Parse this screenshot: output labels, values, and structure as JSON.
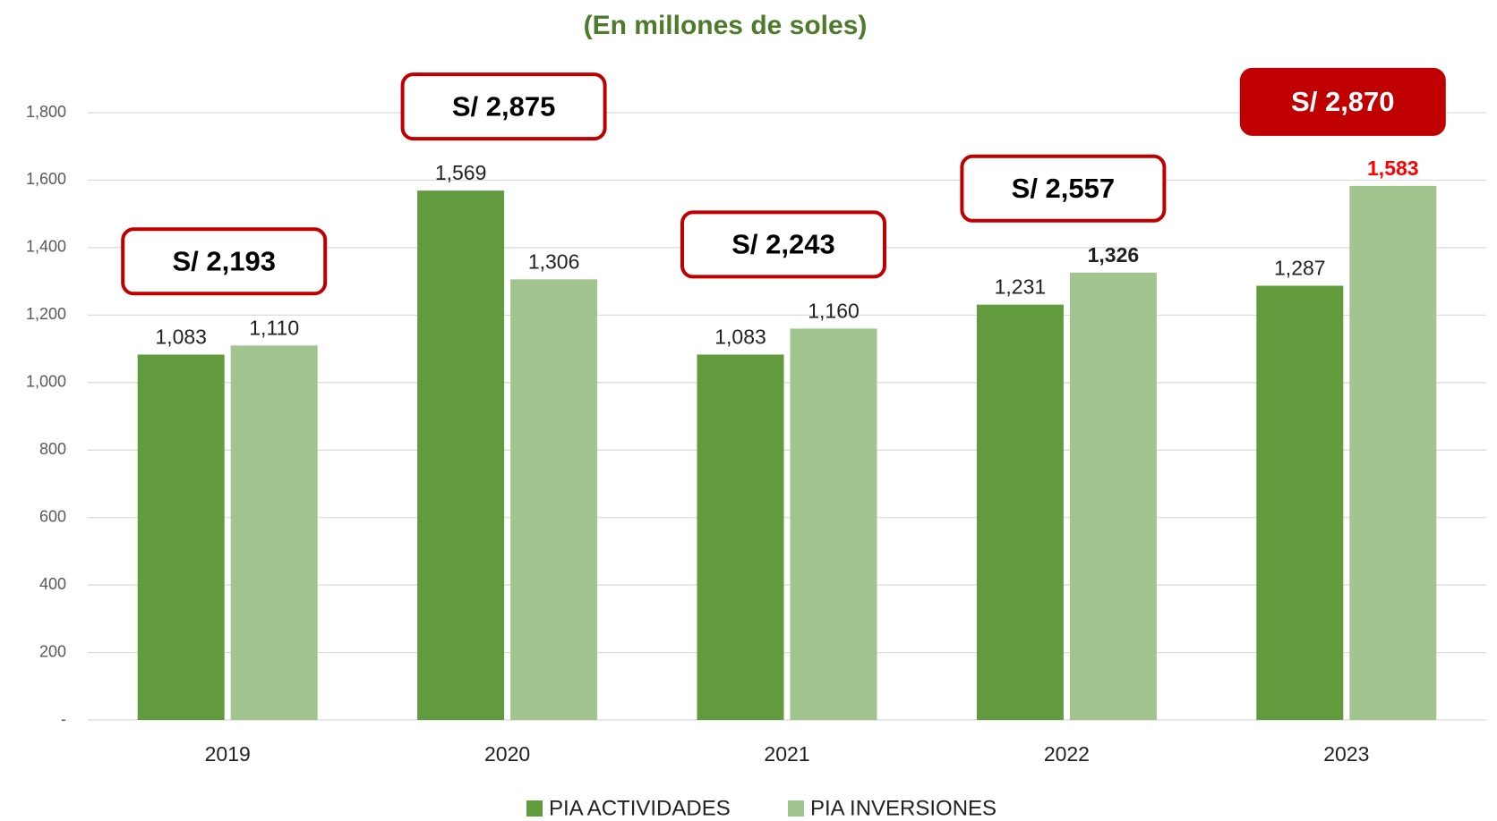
{
  "chart_data": {
    "type": "bar",
    "title": "(En millones de soles)",
    "categories": [
      "2019",
      "2020",
      "2021",
      "2022",
      "2023"
    ],
    "series": [
      {
        "name": "PIA ACTIVIDADES",
        "color": "#629a3e",
        "values": [
          1083,
          1569,
          1083,
          1231,
          1287
        ],
        "value_labels": [
          "1,083",
          "1,569",
          "1,083",
          "1,231",
          "1,287"
        ]
      },
      {
        "name": "PIA INVERSIONES",
        "color": "#a2c58f",
        "values": [
          1110,
          1306,
          1160,
          1326,
          1583
        ],
        "value_labels": [
          "1,110",
          "1,306",
          "1,160",
          "1,326",
          "1,583"
        ]
      }
    ],
    "annotations": [
      "S/ 2,193",
      "S/ 2,875",
      "S/ 2,243",
      "S/ 2,557",
      "S/ 2,870"
    ],
    "ylim": [
      0,
      1800
    ],
    "yticks": [
      {
        "value": 0,
        "label": "-"
      },
      200,
      400,
      600,
      800,
      {
        "value": 1000,
        "label": "1,000"
      },
      {
        "value": 1200,
        "label": "1,200"
      },
      {
        "value": 1400,
        "label": "1,400"
      },
      {
        "value": 1600,
        "label": "1,600"
      },
      {
        "value": 1800,
        "label": "1,800"
      }
    ],
    "grid": true,
    "legend": "bottom"
  }
}
